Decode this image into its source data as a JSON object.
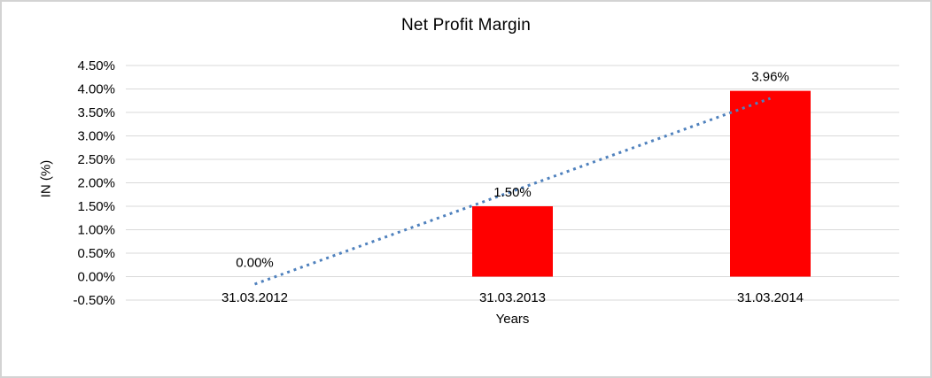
{
  "window": {
    "background_color": "#FFFFFF",
    "border_color": "#D3D3D3"
  },
  "chart_data": {
    "type": "bar",
    "title": "Net Profit Margin",
    "categories": [
      "31.03.2012",
      "31.03.2013",
      "31.03.2014"
    ],
    "values": [
      0.0,
      1.5,
      3.96
    ],
    "data_labels": [
      "0.00%",
      "1.50%",
      "3.96%"
    ],
    "xlabel": "Years",
    "ylabel": "IN (%)",
    "ylim": [
      -0.5,
      4.5
    ],
    "ytick_step": 0.5,
    "ytick_labels": [
      "4.50%",
      "4.00%",
      "3.50%",
      "3.00%",
      "2.50%",
      "2.00%",
      "1.50%",
      "1.00%",
      "0.50%",
      "0.00%",
      "-0.50%"
    ],
    "grid": true,
    "legend_position": "none",
    "bar_color": "#FF0000",
    "gridline_color": "#D9D9D9",
    "text_color": "#000000",
    "trendline": {
      "type": "linear",
      "style": "dotted",
      "color": "#4F81BD",
      "start_value": -0.16,
      "end_value": 3.8
    }
  }
}
